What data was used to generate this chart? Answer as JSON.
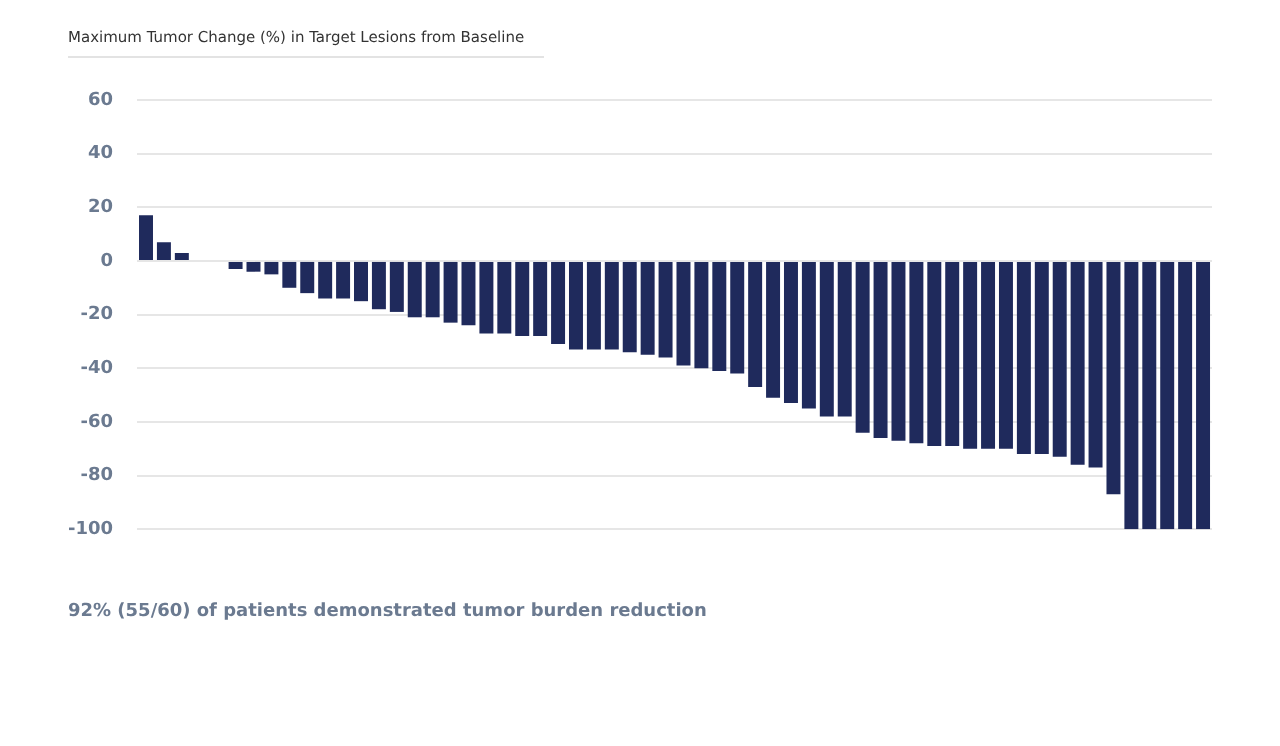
{
  "chart_data": {
    "type": "bar",
    "title": "Maximum Tumor Change (%) in Target Lesions from Baseline",
    "categories": [
      null,
      null,
      null,
      null,
      null,
      null,
      null,
      null,
      null,
      null,
      null,
      null,
      null,
      null,
      null,
      null,
      null,
      null,
      null,
      null,
      null,
      null,
      null,
      null,
      null,
      null,
      null,
      null,
      null,
      null,
      null,
      null,
      null,
      null,
      null,
      null,
      null,
      null,
      null,
      null,
      null,
      null,
      null,
      null,
      null,
      null,
      null,
      null,
      null,
      null,
      null,
      null,
      null,
      null,
      null,
      null,
      null,
      null,
      null,
      null
    ],
    "values": [
      17,
      7,
      3,
      0,
      0,
      -3,
      -4,
      -5,
      -10,
      -12,
      -14,
      -14,
      -15,
      -18,
      -19,
      -21,
      -21,
      -23,
      -24,
      -27,
      -27,
      -28,
      -28,
      -31,
      -33,
      -33,
      -33,
      -34,
      -35,
      -36,
      -39,
      -40,
      -41,
      -42,
      -47,
      -51,
      -53,
      -55,
      -58,
      -58,
      -64,
      -66,
      -67,
      -68,
      -69,
      -69,
      -70,
      -70,
      -70,
      -72,
      -72,
      -73,
      -76,
      -77,
      -87,
      -100,
      -100,
      -100,
      -100,
      -100
    ],
    "color": "#1f2a5c",
    "ylim": [
      -100,
      60
    ],
    "yticks": [
      -100,
      -80,
      -60,
      -40,
      -20,
      0,
      20,
      40,
      60
    ],
    "grid": "y",
    "annotations": [
      "92% (55/60) of patients demonstrated tumor burden reduction"
    ]
  }
}
